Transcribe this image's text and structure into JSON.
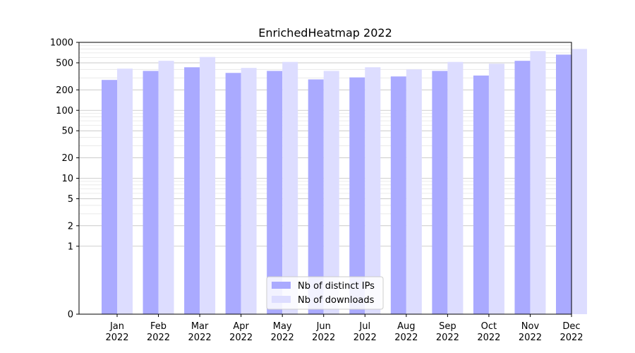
{
  "chart_data": {
    "type": "bar",
    "title": "EnrichedHeatmap 2022",
    "xlabel": "",
    "ylabel": "",
    "yscale": "symlog",
    "ylim": [
      0,
      1000
    ],
    "yticks": [
      0,
      1,
      2,
      5,
      10,
      20,
      50,
      100,
      200,
      500,
      1000
    ],
    "ytick_labels": [
      "0",
      "1",
      "2",
      "5",
      "10",
      "20",
      "50",
      "100",
      "200",
      "500",
      "1000"
    ],
    "grid": true,
    "legend_position": "bottom-center",
    "categories": [
      "Jan\n2022",
      "Feb\n2022",
      "Mar\n2022",
      "Apr\n2022",
      "May\n2022",
      "Jun\n2022",
      "Jul\n2022",
      "Aug\n2022",
      "Sep\n2022",
      "Oct\n2022",
      "Nov\n2022",
      "Dec\n2022"
    ],
    "series": [
      {
        "name": "Nb of distinct IPs",
        "color": "#aaaaff",
        "values": [
          280,
          380,
          430,
          355,
          380,
          285,
          305,
          315,
          380,
          325,
          535,
          660
        ]
      },
      {
        "name": "Nb of downloads",
        "color": "#ddddff",
        "values": [
          410,
          535,
          610,
          420,
          515,
          380,
          430,
          400,
          515,
          485,
          745,
          800
        ]
      }
    ]
  }
}
